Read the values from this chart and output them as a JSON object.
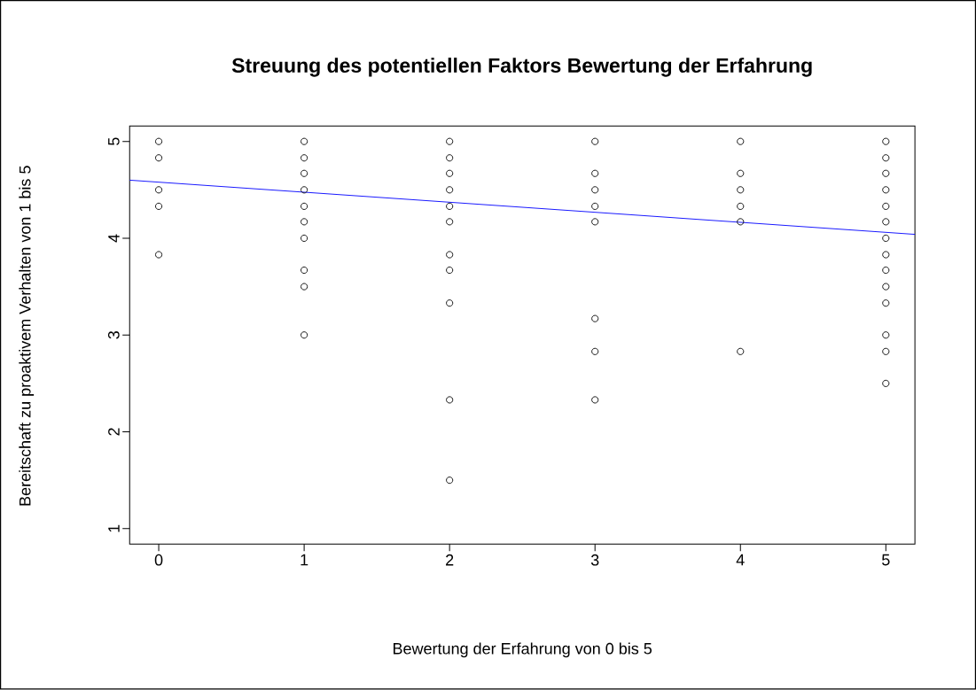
{
  "chart_data": {
    "type": "scatter",
    "title": "Streuung des potentiellen Faktors Bewertung der Erfahrung",
    "xlabel": "Bewertung der Erfahrung von 0 bis 5",
    "ylabel": "Bereitschaft zu proaktivem Verhalten von 1 bis 5",
    "xlim": [
      -0.2,
      5.2
    ],
    "ylim": [
      0.84,
      5.16
    ],
    "xticks": [
      0,
      1,
      2,
      3,
      4,
      5
    ],
    "yticks": [
      1,
      2,
      3,
      4,
      5
    ],
    "series": [
      {
        "marker": "circle",
        "color": "#000000",
        "x": [
          0,
          0,
          0,
          0,
          0,
          1,
          1,
          1,
          1,
          1,
          1,
          1,
          1,
          1,
          1,
          2,
          2,
          2,
          2,
          2,
          2,
          2,
          2,
          2,
          2,
          2,
          3,
          3,
          3,
          3,
          3,
          3,
          3,
          3,
          4,
          4,
          4,
          4,
          4,
          4,
          5,
          5,
          5,
          5,
          5,
          5,
          5,
          5,
          5,
          5,
          5,
          5,
          5,
          5
        ],
        "values": [
          5,
          4.83,
          4.5,
          4.33,
          3.83,
          5,
          4.83,
          4.67,
          4.5,
          4.33,
          4.17,
          4,
          3.67,
          3.5,
          3,
          5,
          4.83,
          4.67,
          4.5,
          4.33,
          4.17,
          3.83,
          3.67,
          3.33,
          2.33,
          1.5,
          5,
          4.67,
          4.5,
          4.33,
          4.17,
          3.17,
          2.83,
          2.33,
          5,
          4.67,
          4.5,
          4.33,
          4.17,
          2.83,
          5,
          4.83,
          4.67,
          4.5,
          4.33,
          4.17,
          4,
          3.83,
          3.67,
          3.5,
          3.33,
          3,
          2.83,
          2.5
        ]
      },
      {
        "type": "line",
        "marker": "none",
        "color": "#0000ff",
        "x": [
          -0.2,
          5.2
        ],
        "values": [
          4.6,
          4.04
        ]
      }
    ]
  }
}
